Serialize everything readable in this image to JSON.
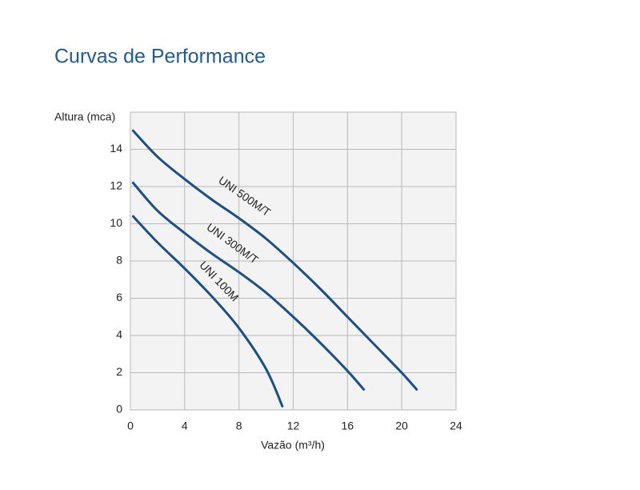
{
  "chart_data": {
    "type": "line",
    "title": "Curvas de Performance",
    "ylabel": "Altura (mca)",
    "xlabel": "Vazão (m³/h)",
    "xlim": [
      0,
      24
    ],
    "xticks": [
      0,
      4,
      8,
      12,
      16,
      20,
      24
    ],
    "ylim": [
      0,
      16
    ],
    "yticks": [
      0,
      2,
      4,
      6,
      8,
      10,
      12,
      14
    ],
    "grid": true,
    "series": [
      {
        "name": "UNI 500M/T",
        "color": "#1b4f87",
        "x": [
          0.2,
          2,
          4,
          6,
          8,
          10,
          12,
          14,
          16,
          18,
          20,
          21.1
        ],
        "values": [
          15,
          13.6,
          12.4,
          11.3,
          10.3,
          9.2,
          7.9,
          6.5,
          5,
          3.5,
          2,
          1.1
        ]
      },
      {
        "name": "UNI 300M/T",
        "color": "#1b4f87",
        "x": [
          0.2,
          2,
          4,
          6,
          8,
          10,
          12,
          14,
          16,
          17.2
        ],
        "values": [
          12.2,
          10.7,
          9.5,
          8.4,
          7.4,
          6.3,
          5,
          3.6,
          2.1,
          1.1
        ]
      },
      {
        "name": "UNI 100M",
        "color": "#1b4f87",
        "x": [
          0.2,
          2,
          4,
          6,
          8,
          10,
          11.2
        ],
        "values": [
          10.4,
          9,
          7.6,
          6.1,
          4.4,
          2.2,
          0.2
        ]
      }
    ]
  }
}
